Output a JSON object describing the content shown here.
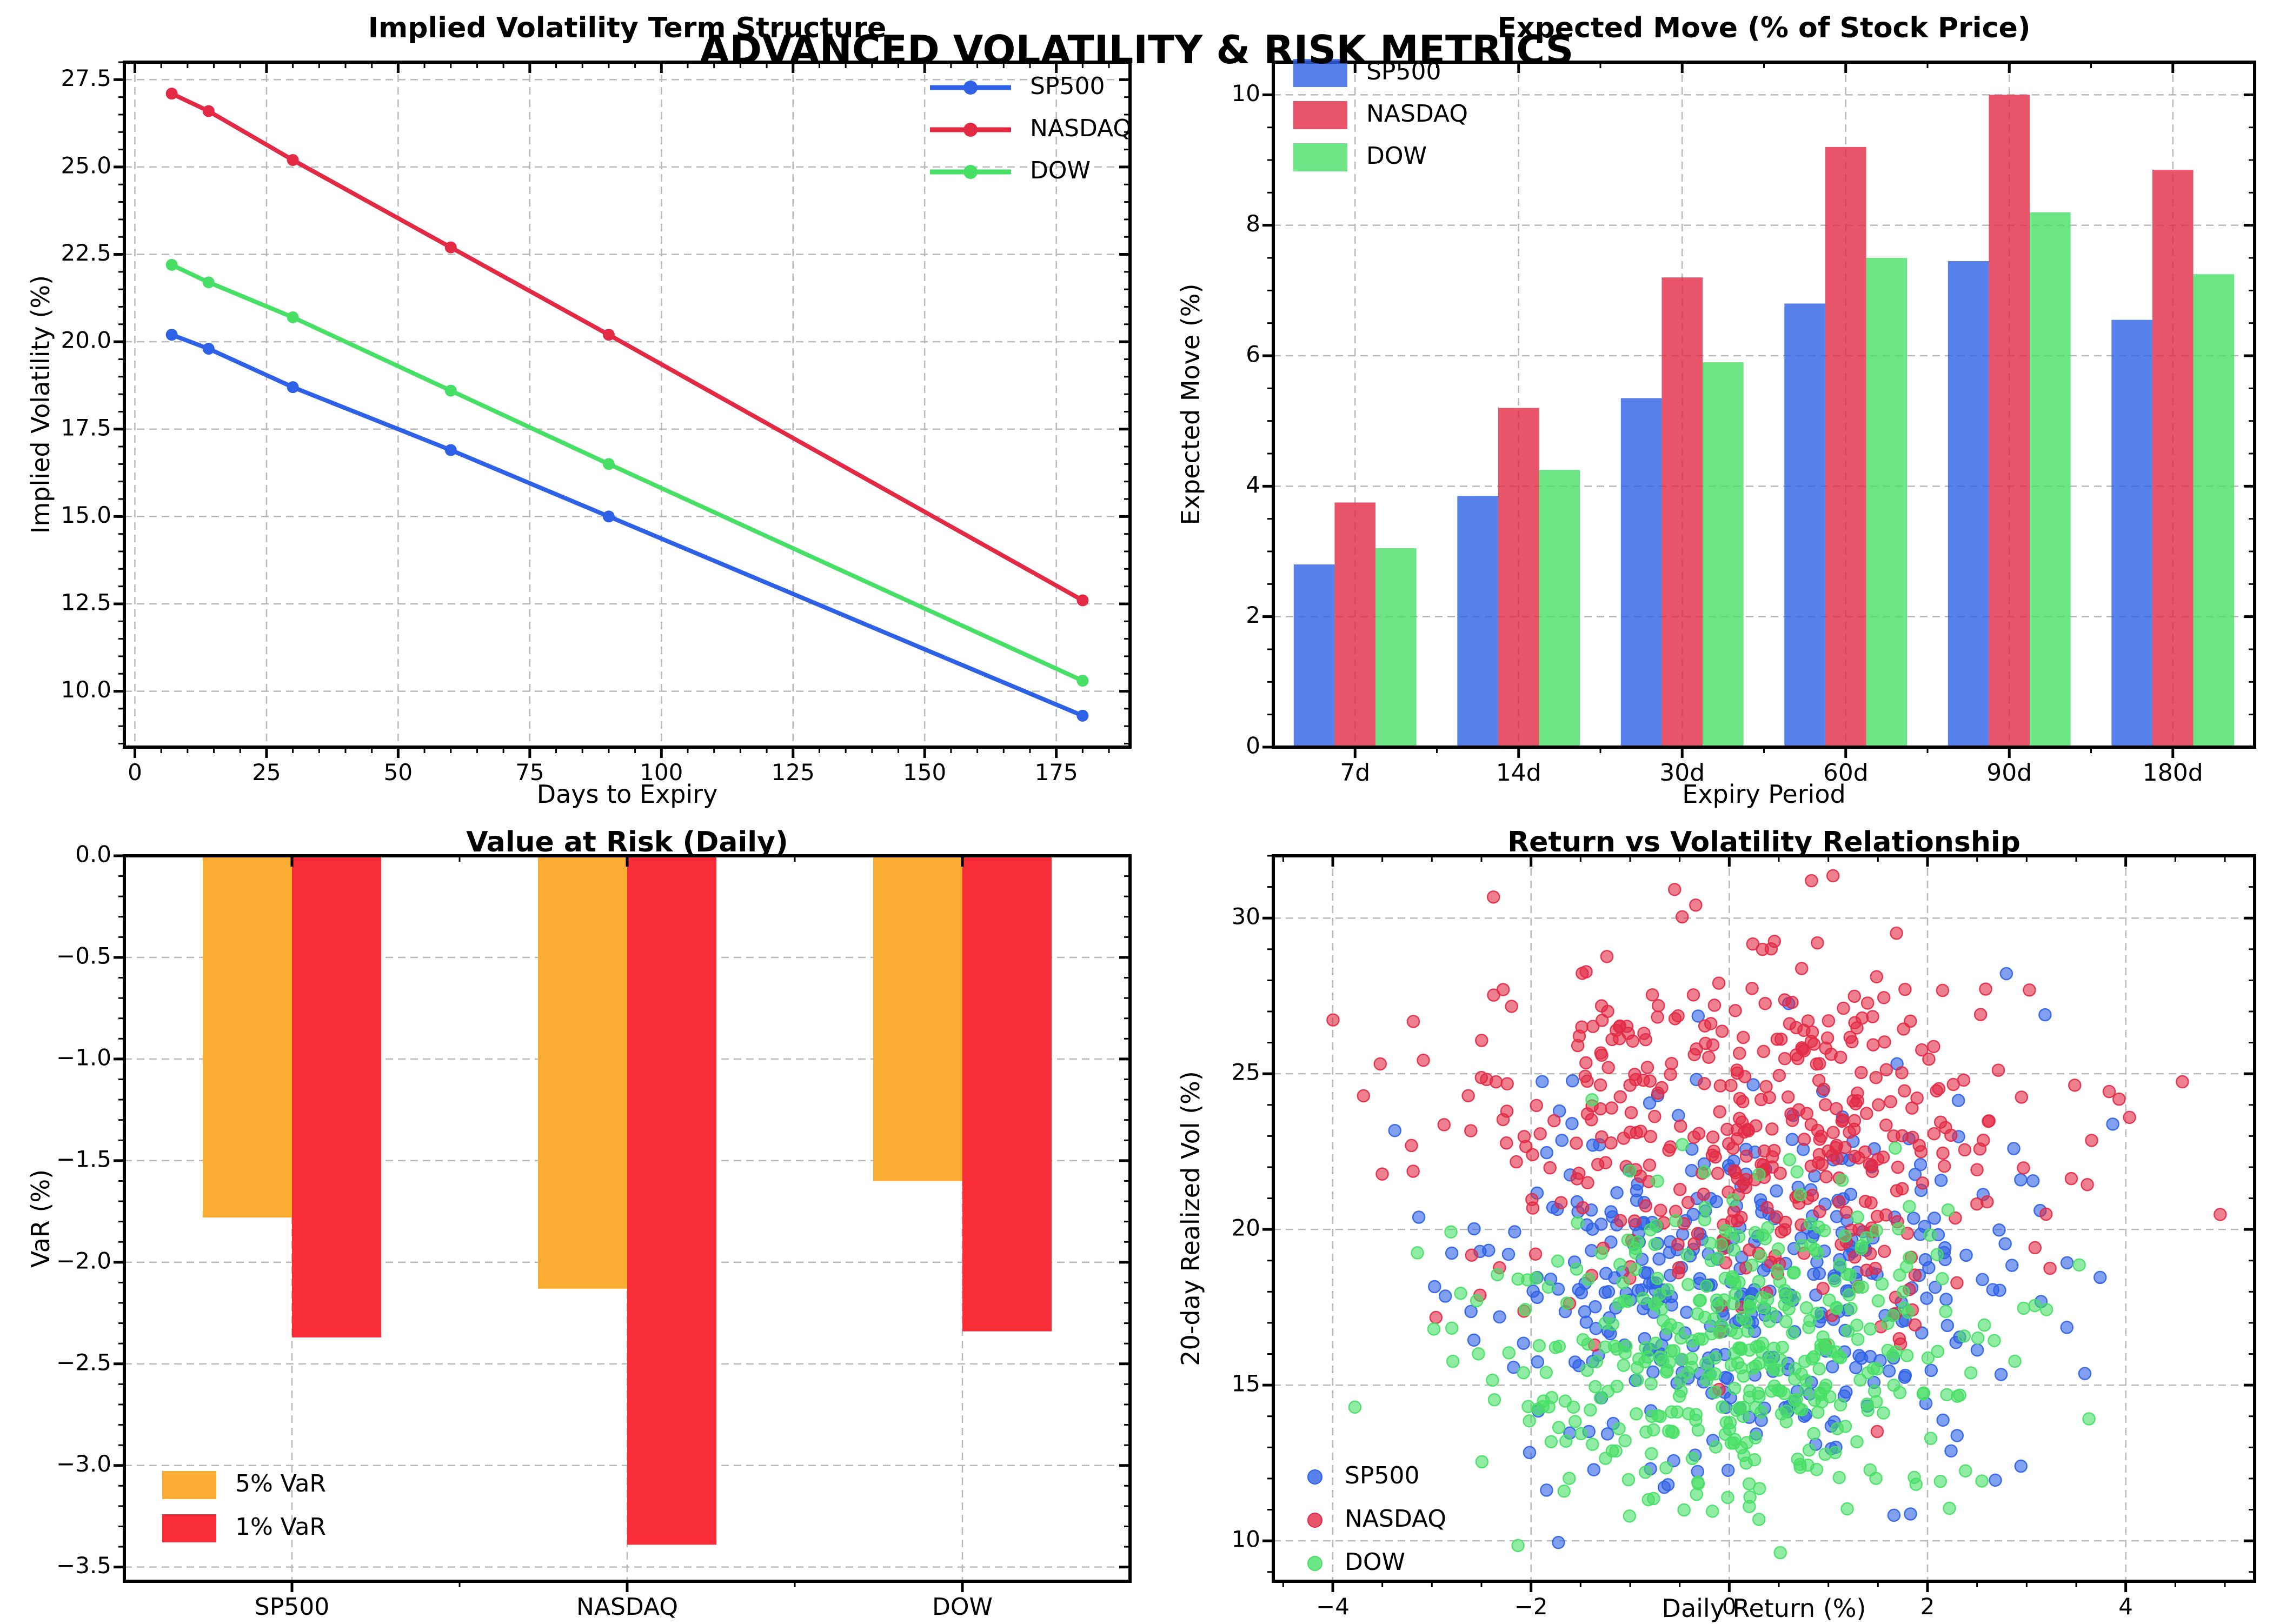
{
  "page": {
    "suptitle": "ADVANCED VOLATILITY & RISK METRICS"
  },
  "colors": {
    "sp500": "#2e61e6",
    "nasdaq": "#e22a45",
    "dow": "#47df66",
    "var5": "#fbad33",
    "var1": "#f92d38",
    "grid": "#b9b9b9",
    "axis": "#000000"
  },
  "chart_data": [
    {
      "type": "line",
      "title": "Implied Volatility Term Structure",
      "xlabel": "Days to Expiry",
      "ylabel": "Implied Volatility (%)",
      "x": [
        7,
        14,
        30,
        60,
        90,
        180
      ],
      "series": [
        {
          "name": "SP500",
          "color_key": "sp500",
          "values": [
            20.2,
            19.8,
            18.7,
            16.9,
            15.0,
            9.3
          ]
        },
        {
          "name": "NASDAQ",
          "color_key": "nasdaq",
          "values": [
            27.1,
            26.6,
            25.2,
            22.7,
            20.2,
            12.6
          ]
        },
        {
          "name": "DOW",
          "color_key": "dow",
          "values": [
            22.2,
            21.7,
            20.7,
            18.6,
            16.5,
            10.3
          ]
        }
      ],
      "xlim": [
        -2,
        189
      ],
      "ylim": [
        8.4,
        28.0
      ],
      "xticks": {
        "values": [
          0,
          25,
          50,
          75,
          100,
          125,
          150,
          175
        ],
        "labels": [
          "0",
          "25",
          "50",
          "75",
          "100",
          "125",
          "150",
          "175"
        ]
      },
      "yticks": {
        "values": [
          10,
          12.5,
          15,
          17.5,
          20,
          22.5,
          25,
          27.5
        ],
        "labels": [
          "10.0",
          "12.5",
          "15.0",
          "17.5",
          "20.0",
          "22.5",
          "25.0",
          "27.5"
        ]
      },
      "legend_position": "upper right",
      "grid": true
    },
    {
      "type": "bar",
      "title": "Expected Move (% of Stock Price)",
      "xlabel": "Expiry Period",
      "ylabel": "Expected Move (%)",
      "categories": [
        "7d",
        "14d",
        "30d",
        "60d",
        "90d",
        "180d"
      ],
      "series": [
        {
          "name": "SP500",
          "color_key": "sp500",
          "values": [
            2.8,
            3.85,
            5.35,
            6.8,
            7.45,
            6.55
          ]
        },
        {
          "name": "NASDAQ",
          "color_key": "nasdaq",
          "values": [
            3.75,
            5.2,
            7.2,
            9.2,
            10.0,
            8.85
          ]
        },
        {
          "name": "DOW",
          "color_key": "dow",
          "values": [
            3.05,
            4.25,
            5.9,
            7.5,
            8.2,
            7.25
          ]
        }
      ],
      "ylim": [
        0,
        10.5
      ],
      "yticks": {
        "values": [
          0,
          2,
          4,
          6,
          8,
          10
        ],
        "labels": [
          "0",
          "2",
          "4",
          "6",
          "8",
          "10"
        ]
      },
      "bar_alpha": 0.8,
      "legend_position": "upper left",
      "grid": true
    },
    {
      "type": "bar",
      "title": "Value at Risk (Daily)",
      "xlabel": "",
      "ylabel": "VaR (%)",
      "categories": [
        "SP500",
        "NASDAQ",
        "DOW"
      ],
      "series": [
        {
          "name": "5% VaR",
          "color_key": "var5",
          "values": [
            -1.78,
            -2.13,
            -1.6
          ]
        },
        {
          "name": "1% VaR",
          "color_key": "var1",
          "values": [
            -2.37,
            -3.39,
            -2.34
          ]
        }
      ],
      "ylim": [
        -3.57,
        0
      ],
      "yticks": {
        "values": [
          0,
          -0.5,
          -1,
          -1.5,
          -2,
          -2.5,
          -3,
          -3.5
        ],
        "labels": [
          "0.0",
          "−0.5",
          "−1.0",
          "−1.5",
          "−2.0",
          "−2.5",
          "−3.0",
          "−3.5"
        ]
      },
      "bar_alpha": 1,
      "legend_position": "lower left",
      "grid": true
    },
    {
      "type": "scatter",
      "title": "Return vs Volatility Relationship",
      "xlabel": "Daily Return (%)",
      "ylabel": "20-day Realized Vol (%)",
      "xlim": [
        -4.6,
        5.3
      ],
      "ylim": [
        8.7,
        32.0
      ],
      "xticks": {
        "values": [
          -4,
          -2,
          0,
          2,
          4
        ],
        "labels": [
          "−4",
          "−2",
          "0",
          "2",
          "4"
        ]
      },
      "yticks": {
        "values": [
          10,
          15,
          20,
          25,
          30
        ],
        "labels": [
          "10",
          "15",
          "20",
          "25",
          "30"
        ]
      },
      "point_alpha": 0.6,
      "series": [
        {
          "name": "SP500",
          "color_key": "sp500",
          "n": 400,
          "center_x": 0.1,
          "sd_x": 1.3,
          "center_y": 18.2,
          "sd_y": 2.9,
          "seed": 11
        },
        {
          "name": "NASDAQ",
          "color_key": "nasdaq",
          "n": 430,
          "center_x": 0.25,
          "sd_x": 1.5,
          "center_y": 23.2,
          "sd_y": 2.9,
          "seed": 22
        },
        {
          "name": "DOW",
          "color_key": "dow",
          "n": 430,
          "center_x": 0.05,
          "sd_x": 1.25,
          "center_y": 15.9,
          "sd_y": 2.6,
          "seed": 33
        }
      ],
      "clip": {
        "x": [
          -4.35,
          5.05
        ],
        "y": [
          9.6,
          31.4
        ]
      },
      "legend_position": "lower left",
      "grid": true
    }
  ]
}
